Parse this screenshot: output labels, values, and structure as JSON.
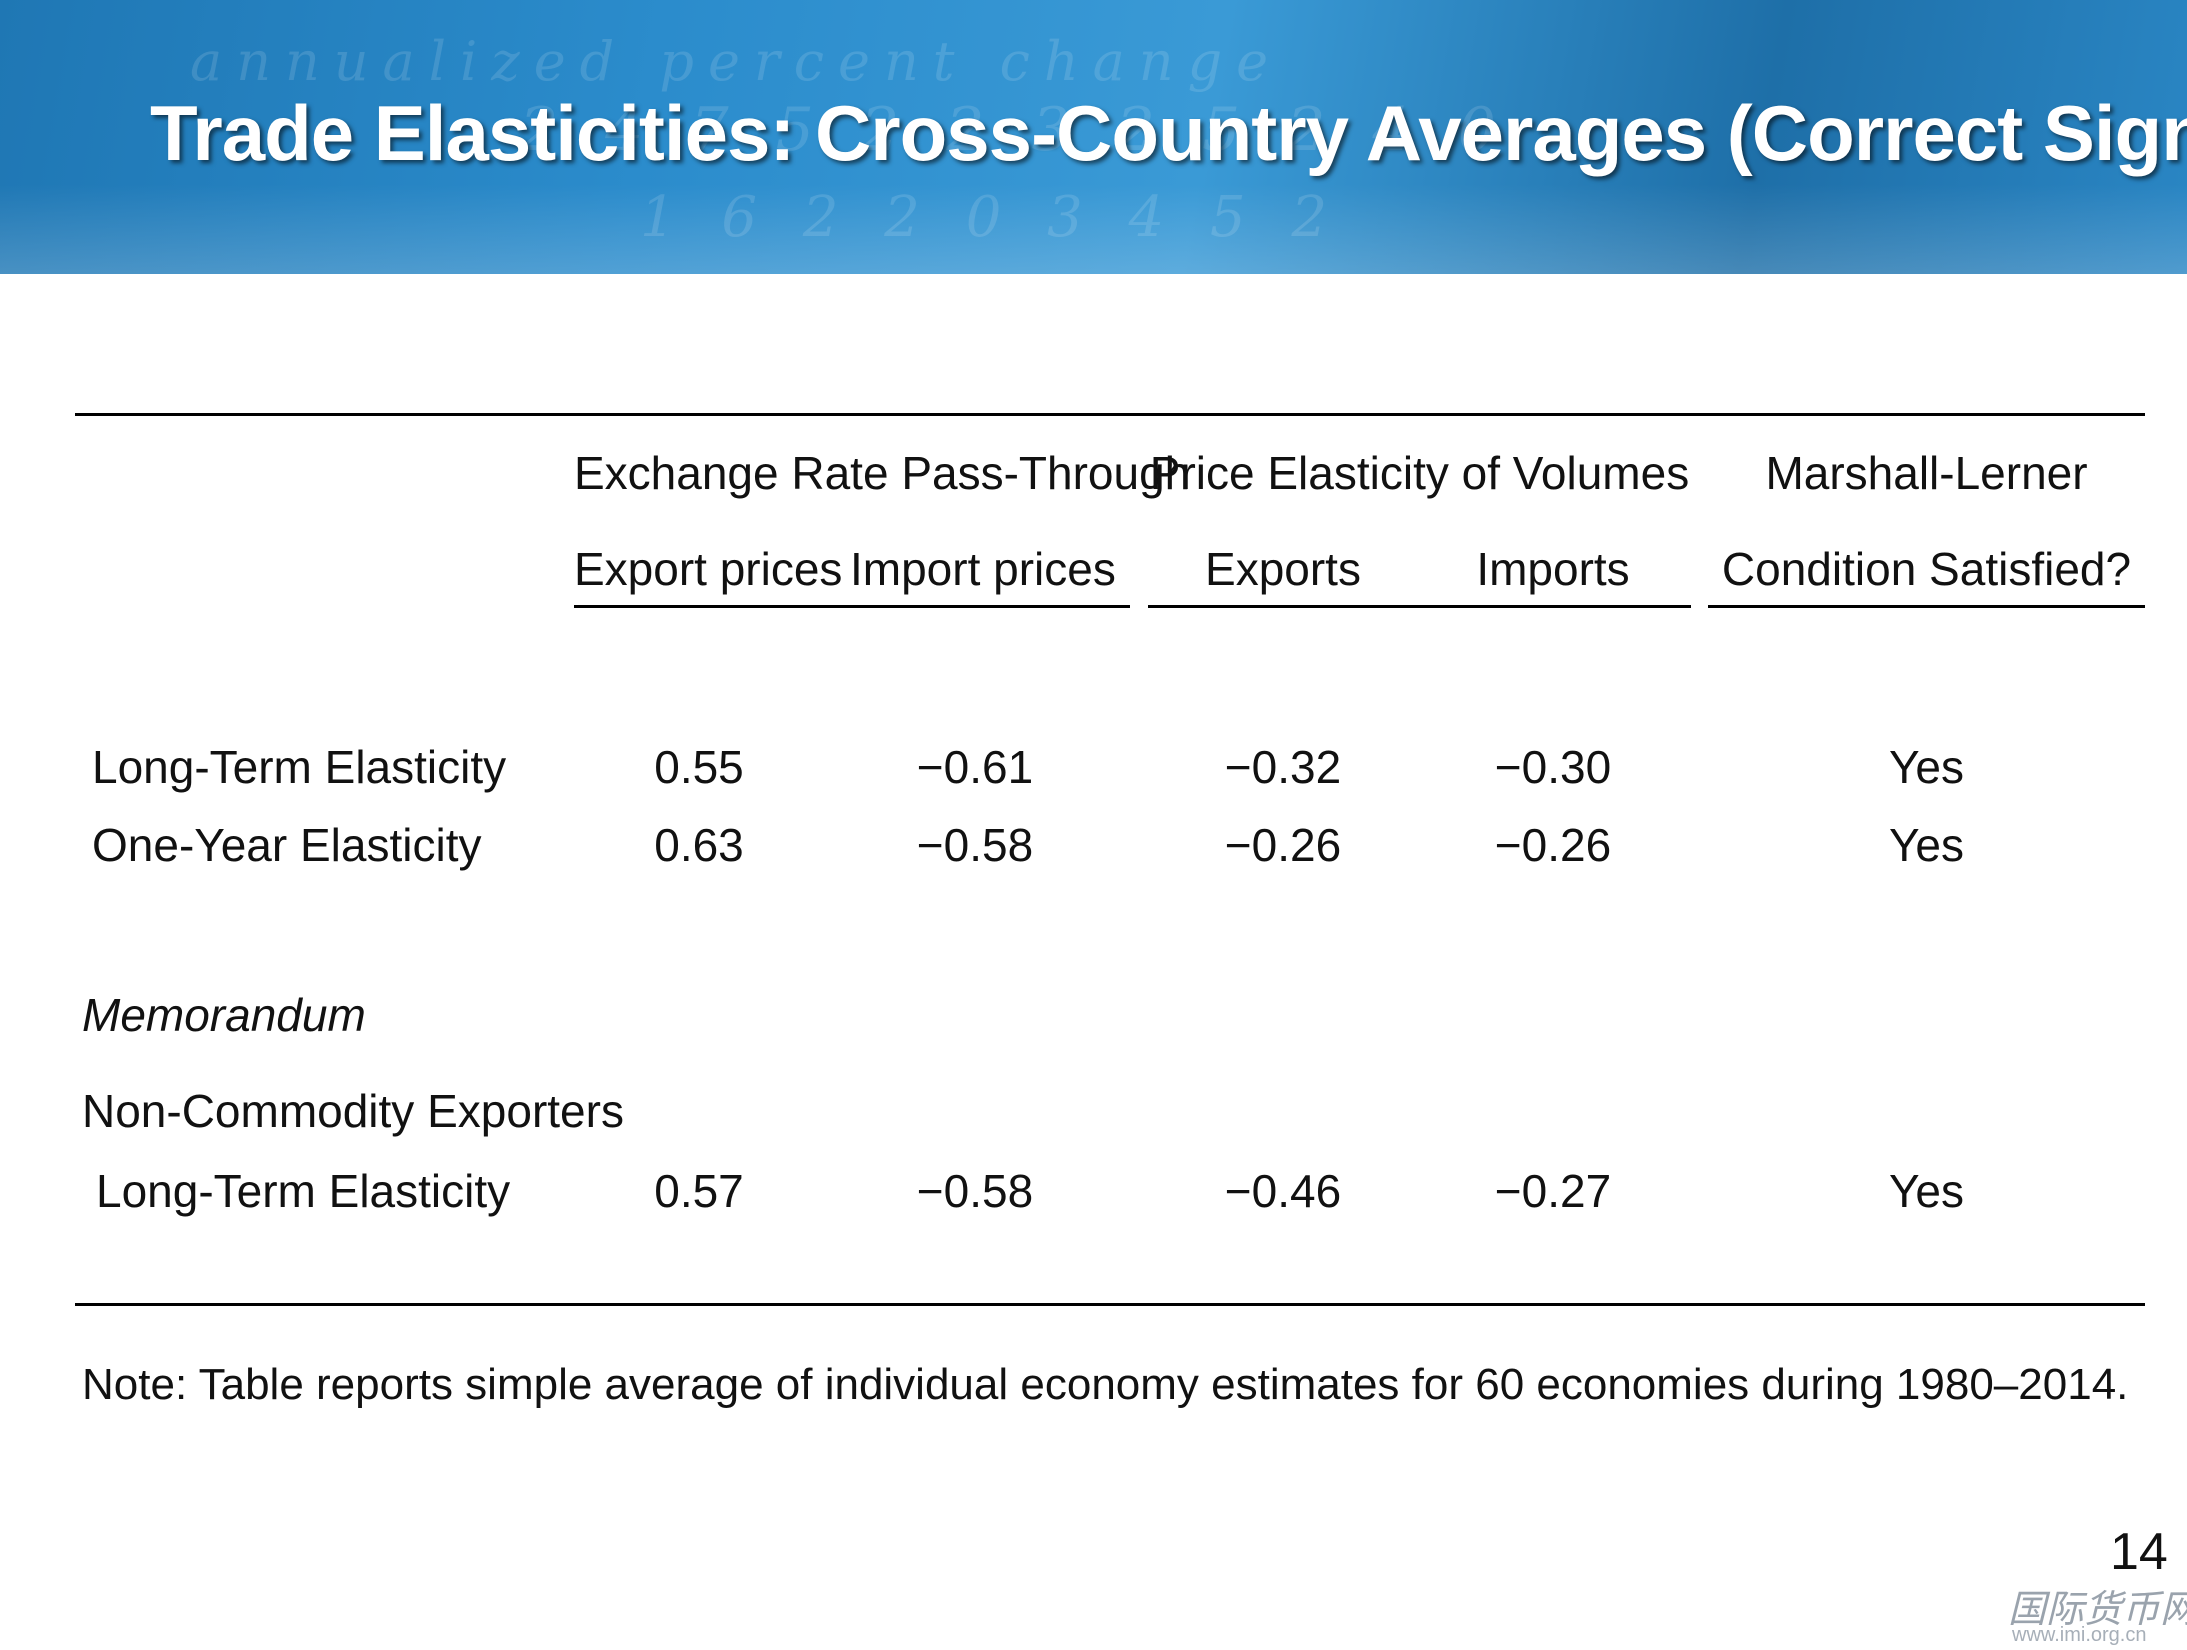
{
  "title": "Trade Elasticities:  Cross-Country Averages (Correct Signs)",
  "table": {
    "group_headers": {
      "pass_through": "Exchange Rate Pass-Through",
      "price_elasticity": "Price Elasticity of Volumes",
      "marshall_lerner_line1": "Marshall-Lerner",
      "marshall_lerner_line2": "Condition Satisfied?"
    },
    "sub_headers": {
      "export_prices": "Export prices",
      "import_prices": "Import prices",
      "exports": "Exports",
      "imports": "Imports"
    },
    "rows": [
      {
        "label": "Long-Term Elasticity",
        "export_prices": "0.55",
        "import_prices": "−0.61",
        "exports": "−0.32",
        "imports": "−0.30",
        "ml": "Yes"
      },
      {
        "label": "One-Year Elasticity",
        "export_prices": "0.63",
        "import_prices": "−0.58",
        "exports": "−0.26",
        "imports": "−0.26",
        "ml": "Yes"
      }
    ],
    "memorandum": {
      "heading": "Memorandum",
      "group_label": "Non-Commodity Exporters",
      "row": {
        "label": "Long-Term Elasticity",
        "export_prices": "0.57",
        "import_prices": "−0.58",
        "exports": "−0.46",
        "imports": "−0.27",
        "ml": "Yes"
      }
    }
  },
  "note": "Note: Table reports simple average of individual economy estimates for 60 economies during 1980–2014.",
  "slide_number": "14",
  "watermark": {
    "cn": "国际货币网",
    "url": "www.imi.org.cn"
  }
}
